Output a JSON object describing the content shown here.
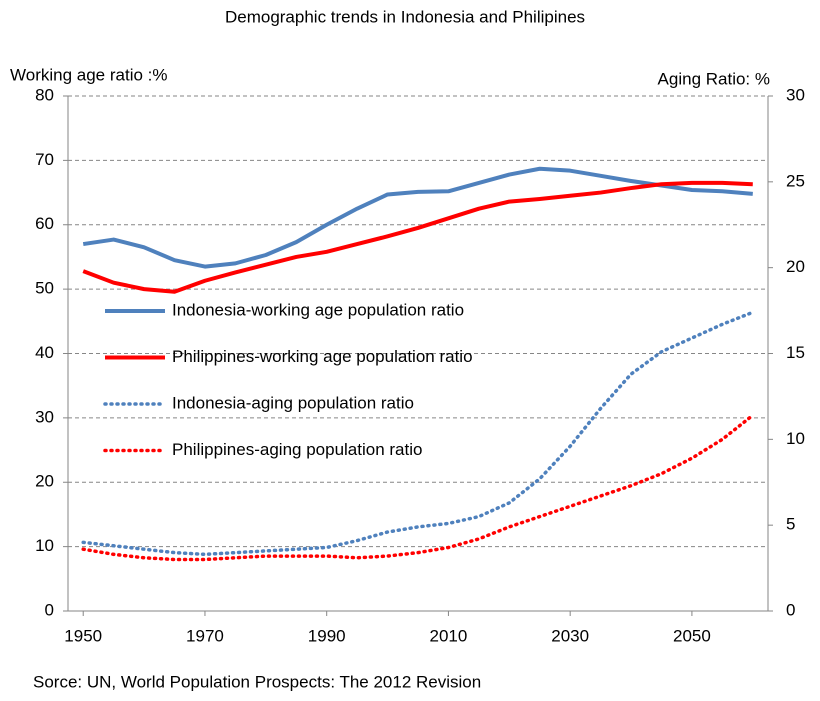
{
  "chart_data": {
    "type": "line",
    "title": "Demographic trends in Indonesia and Philipines",
    "ylabel": "Working age ratio :%",
    "y2label": "Aging Ratio: %",
    "source": "Sorce: UN, World Population Prospects: The 2012 Revision",
    "x": [
      1950,
      1955,
      1960,
      1965,
      1970,
      1975,
      1980,
      1985,
      1990,
      1995,
      2000,
      2005,
      2010,
      2015,
      2020,
      2025,
      2030,
      2035,
      2040,
      2045,
      2050,
      2055,
      2060
    ],
    "xlim": [
      1947.5,
      2062.5
    ],
    "xticks": [
      1950,
      1970,
      1990,
      2010,
      2030,
      2050
    ],
    "ylim": [
      0,
      80
    ],
    "yticks": [
      0,
      10,
      20,
      30,
      40,
      50,
      60,
      70,
      80
    ],
    "y2lim": [
      0,
      30
    ],
    "y2ticks": [
      0,
      5,
      10,
      15,
      20,
      25,
      30
    ],
    "grid": true,
    "series": [
      {
        "name": "Indonesia-working age population ratio",
        "color": "#4f81bd",
        "line_style": "solid",
        "values": [
          57,
          57.7,
          56.5,
          54.5,
          53.5,
          54,
          55.3,
          57.3,
          60,
          62.5,
          64.7,
          65.1,
          65.2,
          66.5,
          67.8,
          68.7,
          68.4,
          67.6,
          66.8,
          66.1,
          65.4,
          65.2,
          64.8
        ]
      },
      {
        "name": "Philippines-working age population ratio",
        "color": "#ff0000",
        "line_style": "solid",
        "values": [
          52.8,
          51,
          50,
          49.6,
          51.3,
          52.6,
          53.8,
          55,
          55.8,
          57,
          58.2,
          59.5,
          61,
          62.5,
          63.6,
          64,
          64.5,
          65,
          65.7,
          66.3,
          66.5,
          66.5,
          66.3
        ]
      },
      {
        "name": "Indonesia-aging population ratio",
        "color": "#4f81bd",
        "line_style": "dotted",
        "axis": "y2",
        "values": [
          4.0,
          3.8,
          3.6,
          3.4,
          3.3,
          3.4,
          3.5,
          3.6,
          3.7,
          4.1,
          4.6,
          4.9,
          5.1,
          5.5,
          6.3,
          7.7,
          9.6,
          11.8,
          13.8,
          15.1,
          15.9,
          16.7,
          17.4
        ]
      },
      {
        "name": "Philippines-aging population ratio",
        "color": "#ff0000",
        "line_style": "dotted",
        "axis": "y2",
        "values": [
          3.6,
          3.3,
          3.1,
          3.0,
          3.0,
          3.1,
          3.2,
          3.2,
          3.2,
          3.1,
          3.2,
          3.4,
          3.7,
          4.2,
          4.9,
          5.5,
          6.1,
          6.7,
          7.3,
          8.0,
          8.9,
          10.0,
          11.4
        ]
      }
    ]
  }
}
